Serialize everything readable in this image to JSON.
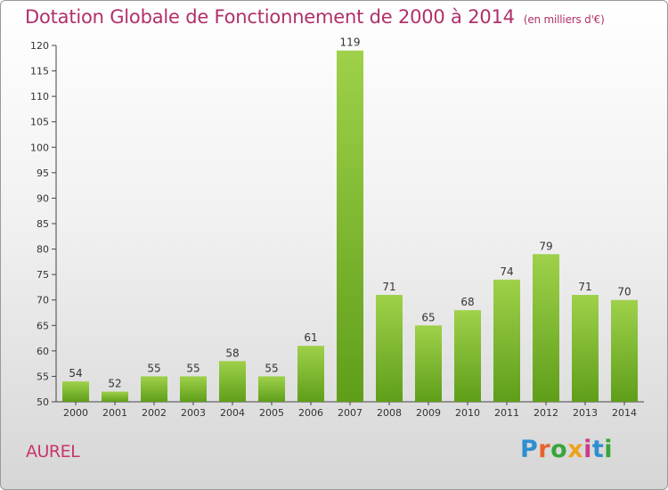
{
  "header": {
    "title": "Dotation Globale de Fonctionnement de 2000 à 2014",
    "unit_note": "(en milliers d'€)"
  },
  "footer": {
    "commune": "AUREL",
    "brand": [
      "P",
      "r",
      "o",
      "x",
      "i",
      "t",
      "i"
    ],
    "brand_colors": [
      "#2e8fd0",
      "#e8632a",
      "#3aa53a",
      "#f0a21e",
      "#cc3b8a",
      "#2e8fd0",
      "#3aa53a"
    ]
  },
  "chart_data": {
    "type": "bar",
    "title": "Dotation Globale de Fonctionnement de 2000 à 2014",
    "subtitle": "(en milliers d'€)",
    "xlabel": "",
    "ylabel": "",
    "categories": [
      "2000",
      "2001",
      "2002",
      "2003",
      "2004",
      "2005",
      "2006",
      "2007",
      "2008",
      "2009",
      "2010",
      "2011",
      "2012",
      "2013",
      "2014"
    ],
    "values": [
      54,
      52,
      55,
      55,
      58,
      55,
      61,
      119,
      71,
      65,
      68,
      74,
      79,
      71,
      70
    ],
    "ylim": [
      50,
      120
    ],
    "yticks": [
      50,
      55,
      60,
      65,
      70,
      75,
      80,
      85,
      90,
      95,
      100,
      105,
      110,
      115,
      120
    ],
    "grid": false,
    "bar_color_top": "#9fd14a",
    "bar_color_bottom": "#5f9e1a"
  }
}
